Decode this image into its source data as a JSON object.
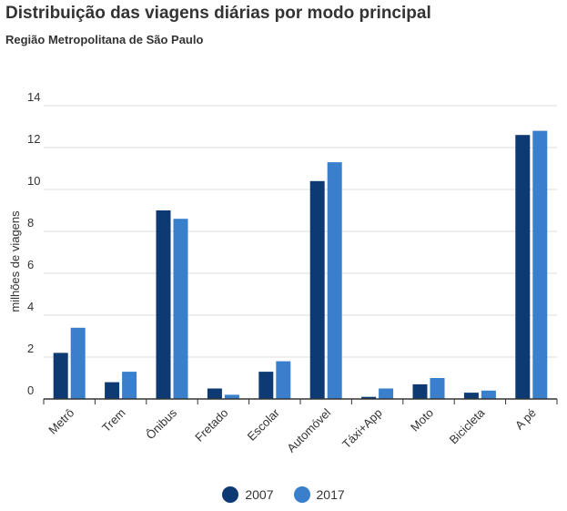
{
  "header": {
    "title": "Distribuição das viagens diárias por modo principal",
    "subtitle": "Região Metropolitana de São Paulo"
  },
  "colors": {
    "series_2007": "#0d3a73",
    "series_2017": "#3a7fcc",
    "grid": "#dddddd",
    "axis": "#333333"
  },
  "chart_data": {
    "type": "bar",
    "title": "Distribuição das viagens diárias por modo principal",
    "subtitle": "Região Metropolitana de São Paulo",
    "xlabel": "",
    "ylabel": "milhões de viagens",
    "ylim": [
      0,
      14
    ],
    "yticks": [
      0,
      2,
      4,
      6,
      8,
      10,
      12,
      14
    ],
    "grid": true,
    "legend": "bottom-center",
    "categories": [
      "Metrô",
      "Trem",
      "Ônibus",
      "Fretado",
      "Escolar",
      "Automóvel",
      "Táxi+App",
      "Moto",
      "Bicicleta",
      "A pé"
    ],
    "series": [
      {
        "name": "2007",
        "values": [
          2.2,
          0.8,
          9.0,
          0.5,
          1.3,
          10.4,
          0.1,
          0.7,
          0.3,
          12.6
        ]
      },
      {
        "name": "2017",
        "values": [
          3.4,
          1.3,
          8.6,
          0.2,
          1.8,
          11.3,
          0.5,
          1.0,
          0.4,
          12.8
        ]
      }
    ]
  },
  "legend": {
    "items": [
      {
        "label": "2007"
      },
      {
        "label": "2017"
      }
    ]
  }
}
